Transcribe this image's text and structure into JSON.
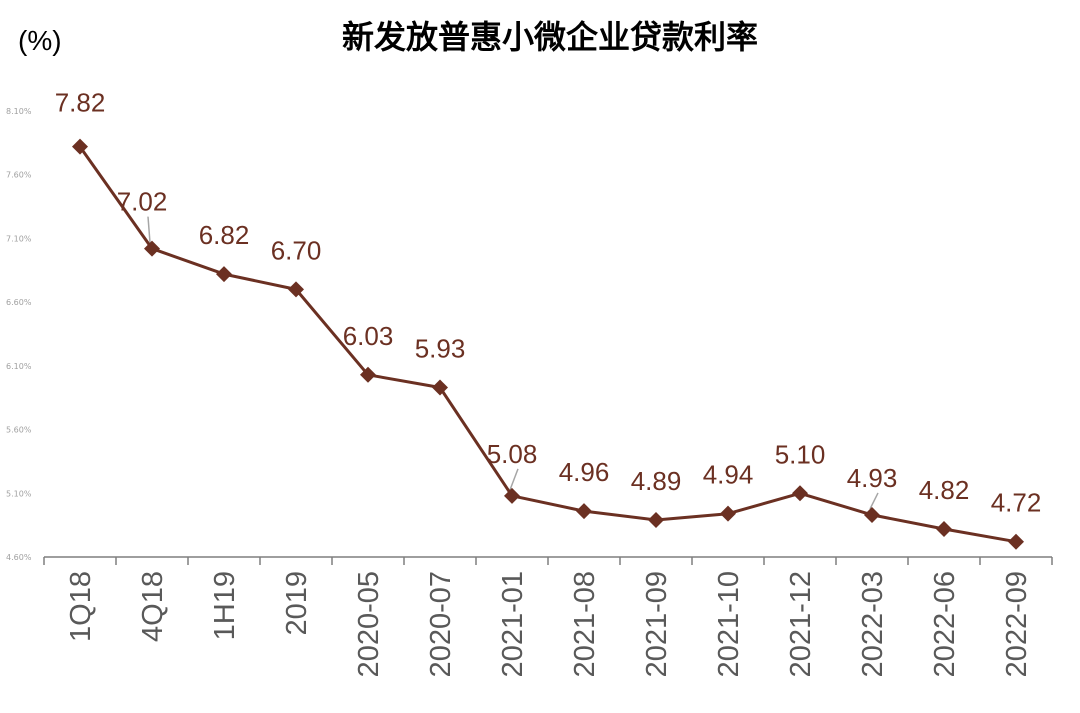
{
  "chart_data": {
    "type": "line",
    "title": "新发放普惠小微企业贷款利率",
    "unit_label": "(%)",
    "xlabel": "",
    "ylabel": "",
    "categories": [
      "1Q18",
      "4Q18",
      "1H19",
      "2019",
      "2020-05",
      "2020-07",
      "2021-01",
      "2021-08",
      "2021-09",
      "2021-10",
      "2021-12",
      "2022-03",
      "2022-06",
      "2022-09"
    ],
    "series": [
      {
        "values": [
          7.82,
          7.02,
          6.82,
          6.7,
          6.03,
          5.93,
          5.08,
          4.96,
          4.89,
          4.94,
          5.1,
          4.93,
          4.82,
          4.72
        ]
      }
    ],
    "data_labels": [
      "7.82",
      "7.02",
      "6.82",
      "6.70",
      "6.03",
      "5.93",
      "5.08",
      "4.96",
      "4.89",
      "4.94",
      "5.10",
      "4.93",
      "4.82",
      "4.72"
    ],
    "y_tick_labels": [
      "4.60%",
      "5.10%",
      "5.60%",
      "6.10%",
      "6.60%",
      "7.10%",
      "7.60%",
      "8.10%"
    ],
    "ylim": [
      4.6,
      8.1
    ],
    "grid": false,
    "legend": "none",
    "colors": {
      "line": "#6b3022",
      "marker": "#6b3022",
      "label": "#6b3022",
      "axis": "#7f7f7f",
      "tick_text": "#595959"
    }
  }
}
